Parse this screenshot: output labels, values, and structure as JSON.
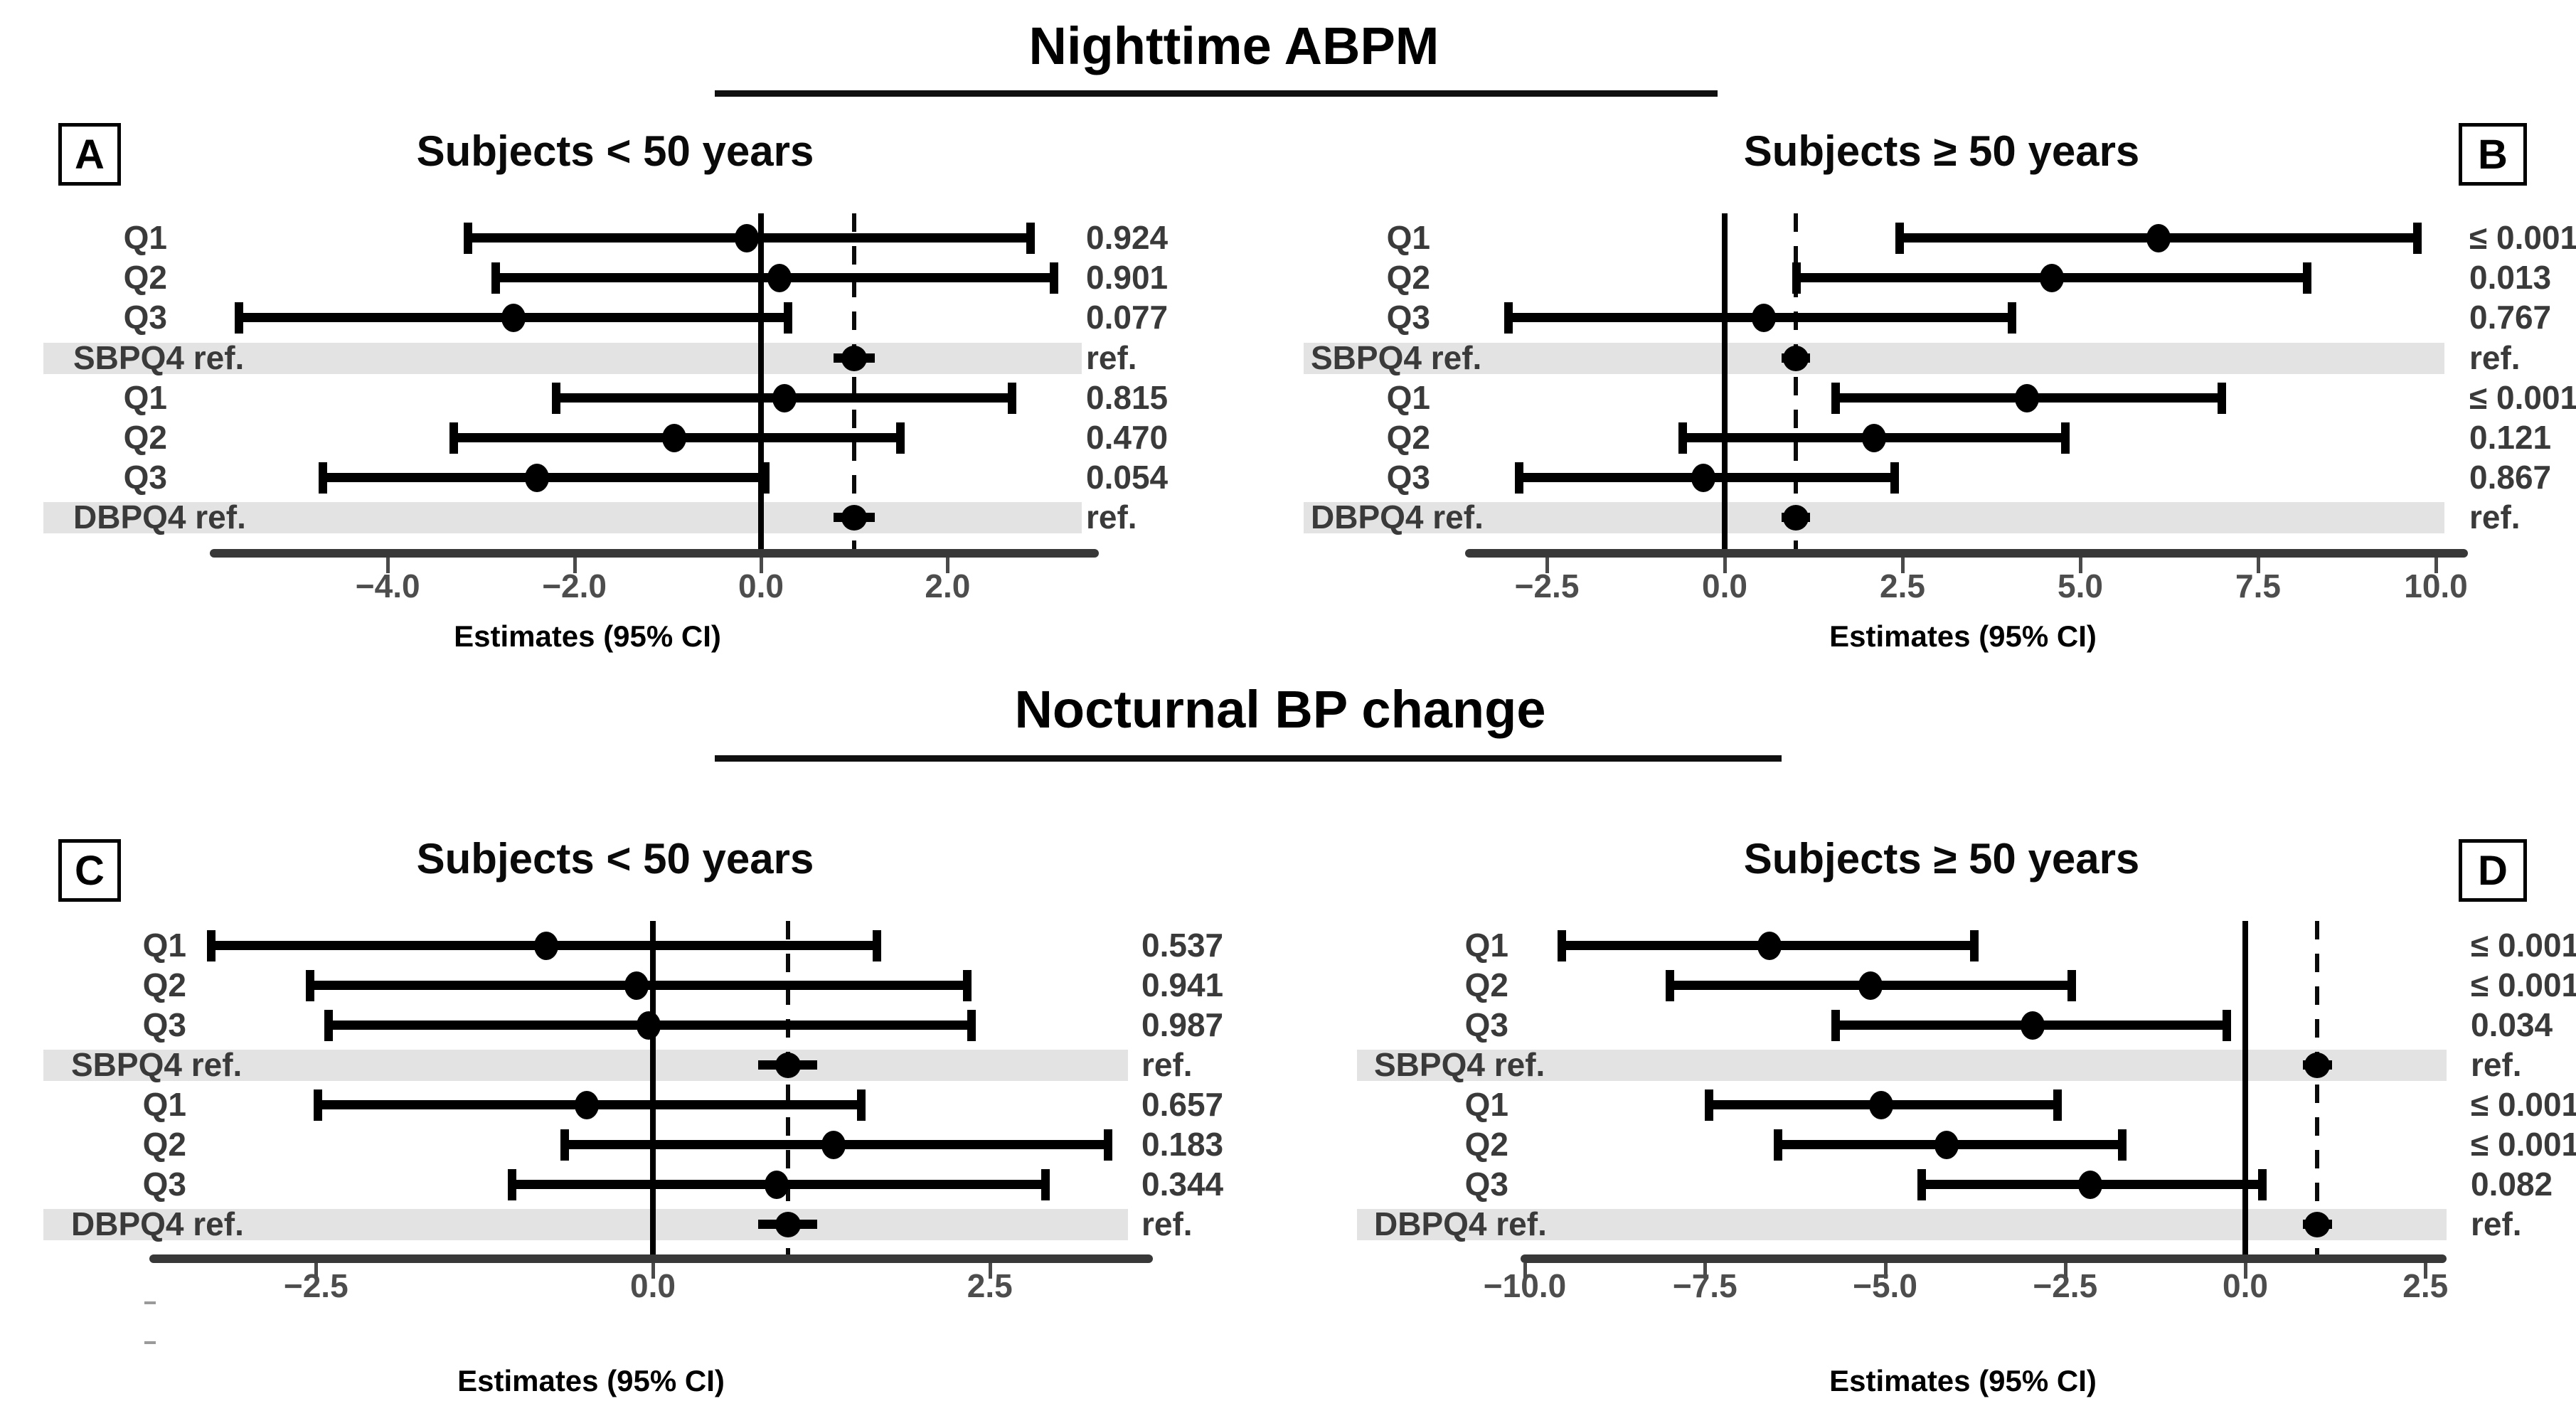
{
  "figure": {
    "section_titles": [
      {
        "text": "Nighttime ABPM"
      },
      {
        "text": "Nocturnal BP change"
      }
    ],
    "xlabel": "Estimates (95% CI)",
    "colors": {
      "marker": "#000000",
      "reference_band": "#e3e3e3",
      "axis": "#383838",
      "label_text": "#3a3a3a",
      "tick_text": "#4d4d4d"
    }
  },
  "chart_data": [
    {
      "id": "A",
      "type": "forest",
      "section": "Nighttime ABPM",
      "title": "Subjects < 50 years",
      "xlabel": "Estimates (95% CI)",
      "xlim": [
        -5.9,
        3.6
      ],
      "solid_ref_line_x": 0.0,
      "dashed_ref_line_x": 1.0,
      "x_ticks": [
        {
          "v": -4,
          "label": "−4.0"
        },
        {
          "v": -2,
          "label": "−2.0"
        },
        {
          "v": 0,
          "label": "0.0"
        },
        {
          "v": 2,
          "label": "2.0"
        }
      ],
      "rows": [
        {
          "label": "Q1",
          "est": -0.15,
          "lo": -3.15,
          "hi": 2.9,
          "p": "0.924",
          "ref": false
        },
        {
          "label": "Q2",
          "est": 0.2,
          "lo": -2.85,
          "hi": 3.15,
          "p": "0.901",
          "ref": false
        },
        {
          "label": "Q3",
          "est": -2.65,
          "lo": -5.6,
          "hi": 0.3,
          "p": "0.077",
          "ref": false
        },
        {
          "label": "SBPQ4 ref.",
          "est": 1.0,
          "lo": 0.78,
          "hi": 1.22,
          "p": "ref.",
          "ref": true
        },
        {
          "label": "Q1",
          "est": 0.25,
          "lo": -2.2,
          "hi": 2.7,
          "p": "0.815",
          "ref": false
        },
        {
          "label": "Q2",
          "est": -0.93,
          "lo": -3.3,
          "hi": 1.5,
          "p": "0.470",
          "ref": false
        },
        {
          "label": "Q3",
          "est": -2.4,
          "lo": -4.7,
          "hi": 0.05,
          "p": "0.054",
          "ref": false
        },
        {
          "label": "DBPQ4 ref.",
          "est": 1.0,
          "lo": 0.78,
          "hi": 1.22,
          "p": "ref.",
          "ref": true
        }
      ]
    },
    {
      "id": "B",
      "type": "forest",
      "section": "Nighttime ABPM",
      "title": "Subjects ≥ 50 years",
      "xlabel": "Estimates (95% CI)",
      "xlim": [
        -3.65,
        10.45
      ],
      "solid_ref_line_x": 0.0,
      "dashed_ref_line_x": 1.0,
      "x_ticks": [
        {
          "v": -2.5,
          "label": "−2.5"
        },
        {
          "v": 0,
          "label": "0.0"
        },
        {
          "v": 2.5,
          "label": "2.5"
        },
        {
          "v": 5,
          "label": "5.0"
        },
        {
          "v": 7.5,
          "label": "7.5"
        },
        {
          "v": 10,
          "label": "10.0"
        }
      ],
      "rows": [
        {
          "label": "Q1",
          "est": 6.1,
          "lo": 2.45,
          "hi": 9.75,
          "p": "≤ 0.001",
          "ref": false
        },
        {
          "label": "Q2",
          "est": 4.6,
          "lo": 1.0,
          "hi": 8.2,
          "p": "0.013",
          "ref": false
        },
        {
          "label": "Q3",
          "est": 0.55,
          "lo": -3.05,
          "hi": 4.05,
          "p": "0.767",
          "ref": false
        },
        {
          "label": "SBPQ4 ref.",
          "est": 1.0,
          "lo": 0.8,
          "hi": 1.2,
          "p": "ref.",
          "ref": true
        },
        {
          "label": "Q1",
          "est": 4.25,
          "lo": 1.55,
          "hi": 7.0,
          "p": "≤ 0.001",
          "ref": false
        },
        {
          "label": "Q2",
          "est": 2.1,
          "lo": -0.6,
          "hi": 4.8,
          "p": "0.121",
          "ref": false
        },
        {
          "label": "Q3",
          "est": -0.3,
          "lo": -2.9,
          "hi": 2.4,
          "p": "0.867",
          "ref": false
        },
        {
          "label": "DBPQ4 ref.",
          "est": 1.0,
          "lo": 0.8,
          "hi": 1.2,
          "p": "ref.",
          "ref": true
        }
      ]
    },
    {
      "id": "C",
      "type": "forest",
      "section": "Nocturnal BP change",
      "title": "Subjects < 50 years",
      "xlabel": "Estimates (95% CI)",
      "xlim": [
        -3.75,
        3.7
      ],
      "solid_ref_line_x": 0.0,
      "dashed_ref_line_x": 1.0,
      "x_ticks": [
        {
          "v": -2.5,
          "label": "−2.5"
        },
        {
          "v": 0,
          "label": "0.0"
        },
        {
          "v": 2.5,
          "label": "2.5"
        }
      ],
      "rows": [
        {
          "label": "Q1",
          "est": -0.79,
          "lo": -3.28,
          "hi": 1.67,
          "p": "0.537",
          "ref": false
        },
        {
          "label": "Q2",
          "est": -0.12,
          "lo": -2.55,
          "hi": 2.34,
          "p": "0.941",
          "ref": false
        },
        {
          "label": "Q3",
          "est": -0.03,
          "lo": -2.41,
          "hi": 2.37,
          "p": "0.987",
          "ref": false
        },
        {
          "label": "SBPQ4 ref.",
          "est": 1.0,
          "lo": 0.78,
          "hi": 1.22,
          "p": "ref.",
          "ref": true
        },
        {
          "label": "Q1",
          "est": -0.49,
          "lo": -2.49,
          "hi": 1.55,
          "p": "0.657",
          "ref": false
        },
        {
          "label": "Q2",
          "est": 1.34,
          "lo": -0.66,
          "hi": 3.38,
          "p": "0.183",
          "ref": false
        },
        {
          "label": "Q3",
          "est": 0.92,
          "lo": -1.05,
          "hi": 2.92,
          "p": "0.344",
          "ref": false
        },
        {
          "label": "DBPQ4 ref.",
          "est": 1.0,
          "lo": 0.78,
          "hi": 1.22,
          "p": "ref.",
          "ref": true
        }
      ]
    },
    {
      "id": "D",
      "type": "forest",
      "section": "Nocturnal BP change",
      "title": "Subjects ≥ 50 years",
      "xlabel": "Estimates (95% CI)",
      "xlim": [
        -10.05,
        2.8
      ],
      "solid_ref_line_x": 0.0,
      "dashed_ref_line_x": 1.0,
      "x_ticks": [
        {
          "v": -10,
          "label": "−10.0"
        },
        {
          "v": -7.5,
          "label": "−7.5"
        },
        {
          "v": -5,
          "label": "−5.0"
        },
        {
          "v": -2.5,
          "label": "−2.5"
        },
        {
          "v": 0,
          "label": "0.0"
        },
        {
          "v": 2.5,
          "label": "2.5"
        }
      ],
      "rows": [
        {
          "label": "Q1",
          "est": -6.6,
          "lo": -9.5,
          "hi": -3.75,
          "p": "≤ 0.001",
          "ref": false
        },
        {
          "label": "Q2",
          "est": -5.2,
          "lo": -8.0,
          "hi": -2.4,
          "p": "≤ 0.001",
          "ref": false
        },
        {
          "label": "Q3",
          "est": -2.95,
          "lo": -5.7,
          "hi": -0.25,
          "p": "0.034",
          "ref": false
        },
        {
          "label": "SBPQ4 ref.",
          "est": 1.0,
          "lo": 0.8,
          "hi": 1.2,
          "p": "ref.",
          "ref": true
        },
        {
          "label": "Q1",
          "est": -5.05,
          "lo": -7.45,
          "hi": -2.6,
          "p": "≤ 0.001",
          "ref": false
        },
        {
          "label": "Q2",
          "est": -4.15,
          "lo": -6.5,
          "hi": -1.7,
          "p": "≤ 0.001",
          "ref": false
        },
        {
          "label": "Q3",
          "est": -2.15,
          "lo": -4.5,
          "hi": 0.25,
          "p": "0.082",
          "ref": false
        },
        {
          "label": "DBPQ4 ref.",
          "est": 1.0,
          "lo": 0.8,
          "hi": 1.2,
          "p": "ref.",
          "ref": true
        }
      ]
    }
  ]
}
